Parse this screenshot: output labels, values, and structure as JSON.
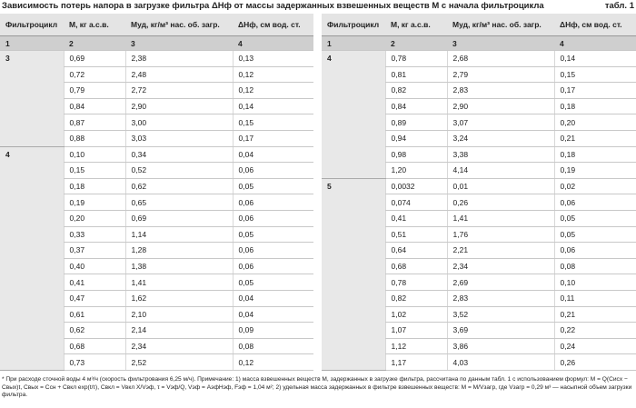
{
  "header": {
    "title": "Зависимость потерь напора в загрузке фильтра ΔHф от массы задержанных взвешенных веществ M с начала фильтроцикла",
    "label": "табл. 1"
  },
  "columns": [
    "Фильтроцикл",
    "M, кг а.с.в.",
    "Mуд, кг/м³ нас. об. загр.",
    "ΔHф, см вод. ст."
  ],
  "column_numbers": [
    "1",
    "2",
    "3",
    "4"
  ],
  "tables": [
    {
      "groups": [
        {
          "cycle": "3",
          "rows": [
            [
              "0,69",
              "2,38",
              "0,13"
            ],
            [
              "0,72",
              "2,48",
              "0,12"
            ],
            [
              "0,79",
              "2,72",
              "0,12"
            ],
            [
              "0,84",
              "2,90",
              "0,14"
            ],
            [
              "0,87",
              "3,00",
              "0,15"
            ],
            [
              "0,88",
              "3,03",
              "0,17"
            ]
          ]
        },
        {
          "cycle": "4",
          "rows": [
            [
              "0,10",
              "0,34",
              "0,04"
            ],
            [
              "0,15",
              "0,52",
              "0,06"
            ],
            [
              "0,18",
              "0,62",
              "0,05"
            ],
            [
              "0,19",
              "0,65",
              "0,06"
            ],
            [
              "0,20",
              "0,69",
              "0,06"
            ],
            [
              "0,33",
              "1,14",
              "0,05"
            ],
            [
              "0,37",
              "1,28",
              "0,06"
            ],
            [
              "0,40",
              "1,38",
              "0,06"
            ],
            [
              "0,41",
              "1,41",
              "0,05"
            ],
            [
              "0,47",
              "1,62",
              "0,04"
            ],
            [
              "0,61",
              "2,10",
              "0,04"
            ],
            [
              "0,62",
              "2,14",
              "0,09"
            ],
            [
              "0,68",
              "2,34",
              "0,08"
            ],
            [
              "0,73",
              "2,52",
              "0,12"
            ]
          ]
        }
      ]
    },
    {
      "groups": [
        {
          "cycle": "4",
          "rows": [
            [
              "0,78",
              "2,68",
              "0,14"
            ],
            [
              "0,81",
              "2,79",
              "0,15"
            ],
            [
              "0,82",
              "2,83",
              "0,17"
            ],
            [
              "0,84",
              "2,90",
              "0,18"
            ],
            [
              "0,89",
              "3,07",
              "0,20"
            ],
            [
              "0,94",
              "3,24",
              "0,21"
            ],
            [
              "0,98",
              "3,38",
              "0,18"
            ],
            [
              "1,20",
              "4,14",
              "0,19"
            ]
          ]
        },
        {
          "cycle": "5",
          "rows": [
            [
              "0,0032",
              "0,01",
              "0,02"
            ],
            [
              "0,074",
              "0,26",
              "0,06"
            ],
            [
              "0,41",
              "1,41",
              "0,05"
            ],
            [
              "0,51",
              "1,76",
              "0,05"
            ],
            [
              "0,64",
              "2,21",
              "0,06"
            ],
            [
              "0,68",
              "2,34",
              "0,08"
            ],
            [
              "0,78",
              "2,69",
              "0,10"
            ],
            [
              "0,82",
              "2,83",
              "0,11"
            ],
            [
              "1,02",
              "3,52",
              "0,21"
            ],
            [
              "1,07",
              "3,69",
              "0,22"
            ],
            [
              "1,12",
              "3,86",
              "0,24"
            ],
            [
              "1,17",
              "4,03",
              "0,26"
            ]
          ]
        }
      ]
    }
  ],
  "footnote": "* При расходе сточной воды 4 м³/ч (скорость фильтрования 6,25 м/ч). Примечание: 1) масса взвешенных веществ M, задержанных в загрузке фильтра, рассчитана по данным табл. 1 с использованием формул: M = Q(Cисх − Cвых)t, Cвых = Cсн + Cвкл exp(t/τ), Cвкл = Vвкл X/Vэф, τ = Vэф/Q, Vэф = AэфHэф, Fэф = 1,04 м²; 2) удельная масса задержанных в фильтре взвешенных веществ: M = M/Vзагр, где Vзагр = 0,29 м³ — насыпной объем загрузки фильтра."
}
